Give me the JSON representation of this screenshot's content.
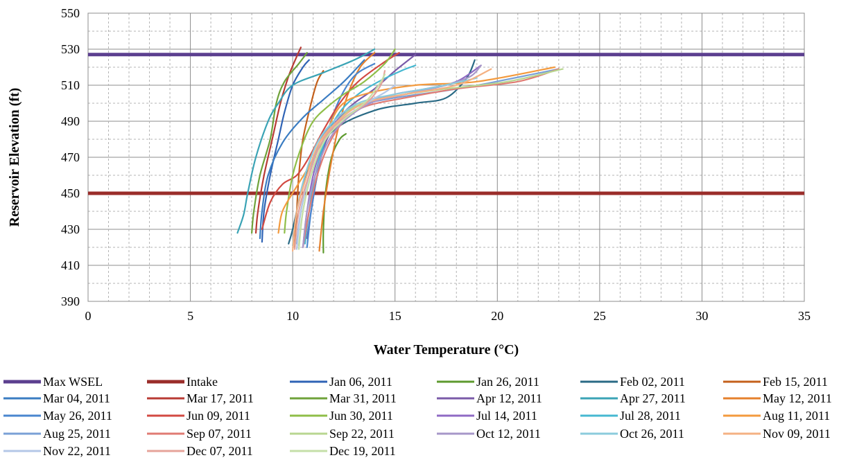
{
  "chart_data": {
    "type": "line",
    "xlabel": "Water Temperature  (°C)",
    "ylabel": "Reservoir Elevation  (ft)",
    "xlim": [
      0,
      35
    ],
    "ylim": [
      390,
      550
    ],
    "x_ticks": [
      "0",
      "5",
      "10",
      "15",
      "20",
      "25",
      "30",
      "35"
    ],
    "y_ticks": [
      "390",
      "410",
      "430",
      "450",
      "470",
      "490",
      "510",
      "530",
      "550"
    ],
    "grid": true,
    "legend_position": "bottom",
    "reference_lines": [
      {
        "name": "Max WSEL",
        "y": 527,
        "color": "#5c3f8f"
      },
      {
        "name": "Intake",
        "y": 450,
        "color": "#9a2d2a"
      }
    ],
    "series": [
      {
        "name": "Jan 06, 2011",
        "color": "#2f63b5",
        "x": [
          8.5,
          8.6,
          8.9,
          9.3,
          9.6,
          10.0,
          10.5,
          10.8
        ],
        "y": [
          423,
          440,
          460,
          480,
          495,
          510,
          520,
          524
        ]
      },
      {
        "name": "Jan 26, 2011",
        "color": "#5d9a2e",
        "x": [
          11.5,
          11.5,
          11.6,
          11.9,
          12.3,
          12.6
        ],
        "y": [
          417,
          430,
          450,
          470,
          480,
          483
        ]
      },
      {
        "name": "Feb 02, 2011",
        "color": "#2a6a85",
        "x": [
          9.8,
          10.0,
          10.3,
          10.8,
          12.0,
          14.0,
          16.0,
          17.5,
          18.5,
          18.9
        ],
        "y": [
          422,
          430,
          445,
          465,
          485,
          496,
          500,
          503,
          514,
          524
        ]
      },
      {
        "name": "Feb 15, 2011",
        "color": "#c4601b",
        "x": [
          10.1,
          10.2,
          10.3,
          10.5,
          10.9,
          11.2,
          11.5
        ],
        "y": [
          420,
          440,
          460,
          480,
          500,
          512,
          518
        ]
      },
      {
        "name": "Mar 04, 2011",
        "color": "#3a7cc2",
        "x": [
          8.4,
          8.5,
          8.8,
          9.5,
          10.5,
          11.5,
          12.5,
          13.5
        ],
        "y": [
          425,
          440,
          460,
          478,
          492,
          502,
          512,
          524
        ]
      },
      {
        "name": "Mar 17, 2011",
        "color": "#b83a34",
        "x": [
          8.2,
          8.3,
          8.6,
          9.0,
          9.4,
          9.8,
          10.2,
          10.4
        ],
        "y": [
          428,
          440,
          460,
          480,
          500,
          515,
          526,
          531
        ]
      },
      {
        "name": "Mar 31, 2011",
        "color": "#6fa23a",
        "x": [
          8.0,
          8.1,
          8.4,
          8.9,
          9.2,
          9.6,
          10.3,
          10.7
        ],
        "y": [
          428,
          440,
          460,
          480,
          500,
          512,
          522,
          528
        ]
      },
      {
        "name": "Apr 12, 2011",
        "color": "#7a5aa8",
        "x": [
          10.7,
          10.9,
          11.2,
          11.6,
          12.3,
          13.0,
          14.0,
          15.0,
          16.0
        ],
        "y": [
          425,
          440,
          460,
          478,
          492,
          500,
          508,
          518,
          527
        ]
      },
      {
        "name": "Apr 27, 2011",
        "color": "#3aa3b5",
        "x": [
          7.3,
          7.6,
          7.8,
          8.2,
          8.8,
          9.3,
          10.0,
          11.5,
          13.0,
          14.0
        ],
        "y": [
          428,
          438,
          450,
          470,
          490,
          500,
          510,
          517,
          524,
          530
        ]
      },
      {
        "name": "May 12, 2011",
        "color": "#e5802c",
        "x": [
          11.3,
          11.5,
          11.8,
          12.2,
          12.7,
          13.3,
          14.0
        ],
        "y": [
          418,
          440,
          462,
          485,
          505,
          520,
          528
        ]
      },
      {
        "name": "May 26, 2011",
        "color": "#4a86cf",
        "x": [
          10.7,
          10.9,
          11.2,
          11.6,
          12.2,
          13.0,
          14.0
        ],
        "y": [
          420,
          440,
          460,
          480,
          500,
          515,
          522
        ]
      },
      {
        "name": "Jun 09, 2011",
        "color": "#d24a42",
        "x": [
          8.5,
          8.9,
          9.5,
          10.2,
          10.8,
          11.5,
          12.3,
          13.2,
          14.5,
          15.2
        ],
        "y": [
          430,
          445,
          455,
          460,
          470,
          485,
          500,
          512,
          523,
          528
        ]
      },
      {
        "name": "Jun 30, 2011",
        "color": "#8fbe48",
        "x": [
          9.6,
          9.7,
          10.0,
          10.5,
          11.0,
          11.7,
          12.5,
          13.5,
          14.5,
          15.0
        ],
        "y": [
          428,
          440,
          460,
          478,
          490,
          498,
          505,
          512,
          522,
          530
        ]
      },
      {
        "name": "Jul 14, 2011",
        "color": "#8f6ac4",
        "x": [
          10.5,
          10.7,
          11.0,
          11.5,
          12.3,
          13.5,
          15.0,
          16.5,
          18.0,
          19.2
        ],
        "y": [
          420,
          440,
          460,
          478,
          492,
          500,
          505,
          508,
          512,
          521
        ]
      },
      {
        "name": "Jul 28, 2011",
        "color": "#46b8d1",
        "x": [
          10.6,
          10.8,
          11.1,
          11.6,
          12.3,
          13.2,
          14.2,
          15.3,
          16.0
        ],
        "y": [
          422,
          440,
          460,
          480,
          495,
          505,
          512,
          518,
          521
        ]
      },
      {
        "name": "Aug 11, 2011",
        "color": "#f39a3e",
        "x": [
          9.3,
          9.5,
          10.1,
          10.8,
          11.5,
          12.3,
          13.5,
          16.0,
          19.0,
          22.8
        ],
        "y": [
          428,
          440,
          452,
          465,
          480,
          498,
          505,
          510,
          512,
          520
        ]
      },
      {
        "name": "Aug 25, 2011",
        "color": "#7aa0d6",
        "x": [
          10.2,
          10.4,
          10.8,
          11.3,
          12.0,
          13.0,
          15.0,
          17.5,
          19.5,
          23.0
        ],
        "y": [
          422,
          440,
          460,
          478,
          490,
          498,
          503,
          507,
          511,
          519
        ]
      },
      {
        "name": "Sep 07, 2011",
        "color": "#e07b73",
        "x": [
          10.5,
          10.8,
          11.2,
          11.8,
          12.5,
          13.5,
          15.5,
          18.0,
          21.0,
          23.0
        ],
        "y": [
          420,
          440,
          460,
          478,
          490,
          498,
          503,
          508,
          512,
          519
        ]
      },
      {
        "name": "Sep 22, 2011",
        "color": "#b8d690",
        "x": [
          10.3,
          10.5,
          10.9,
          11.5,
          12.2,
          13.2,
          15.0,
          17.5,
          20.5,
          23.2
        ],
        "y": [
          421,
          440,
          460,
          478,
          490,
          499,
          504,
          508,
          512,
          519
        ]
      },
      {
        "name": "Oct 12, 2011",
        "color": "#a797c9",
        "x": [
          10.5,
          10.7,
          11.1,
          11.7,
          12.5,
          13.8,
          15.5,
          17.5,
          18.7,
          19.2
        ],
        "y": [
          420,
          440,
          460,
          478,
          490,
          500,
          505,
          510,
          515,
          521
        ]
      },
      {
        "name": "Oct 26, 2011",
        "color": "#8bcbdc",
        "x": [
          10.0,
          10.2,
          10.6,
          11.2,
          12.0,
          13.2,
          15.0,
          17.0,
          19.0
        ],
        "y": [
          421,
          440,
          460,
          478,
          490,
          500,
          505,
          509,
          514
        ]
      },
      {
        "name": "Nov 09, 2011",
        "color": "#f4b183",
        "x": [
          10.0,
          10.2,
          10.7,
          11.3,
          12.2,
          13.5,
          15.5,
          18.0,
          19.7
        ],
        "y": [
          418,
          440,
          460,
          478,
          490,
          500,
          505,
          510,
          519
        ]
      },
      {
        "name": "Nov 22, 2011",
        "color": "#b4c7e7",
        "x": [
          10.2,
          10.4,
          10.8,
          11.4,
          12.3,
          13.6,
          14.5,
          15.0
        ],
        "y": [
          419,
          440,
          460,
          478,
          490,
          500,
          506,
          510
        ]
      },
      {
        "name": "Dec 07, 2011",
        "color": "#e6a39a",
        "x": [
          10.1,
          10.3,
          10.8,
          11.4,
          12.3,
          13.6,
          14.3,
          14.5
        ],
        "y": [
          419,
          440,
          460,
          478,
          490,
          500,
          510,
          518
        ]
      },
      {
        "name": "Dec 19, 2011",
        "color": "#c5dfa8",
        "x": [
          10.3,
          10.5,
          10.9,
          11.5,
          12.4,
          13.5,
          14.2,
          14.5
        ],
        "y": [
          419,
          440,
          460,
          478,
          490,
          500,
          510,
          516
        ]
      }
    ]
  }
}
